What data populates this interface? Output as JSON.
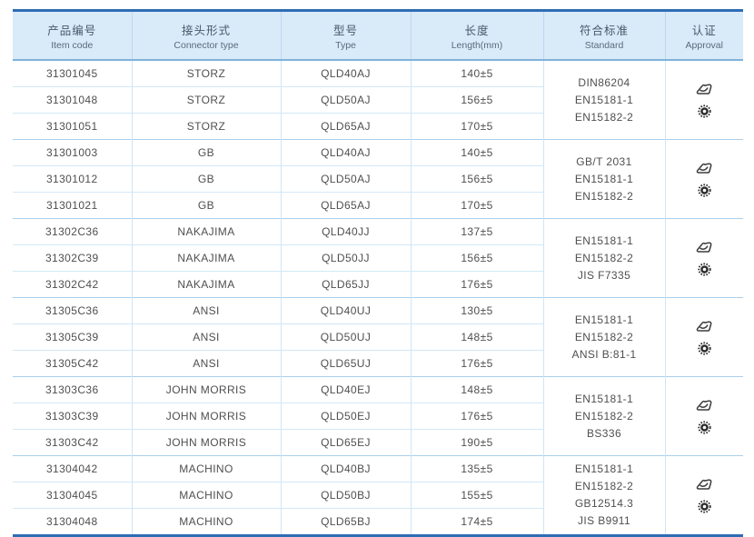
{
  "colors": {
    "border_accent": "#2e6db4",
    "header_bg": "#d9eaf8",
    "row_separator": "#cfe6f5",
    "group_separator": "#aacfeb",
    "text": "#4f4f4f"
  },
  "table": {
    "columns": [
      {
        "zh": "产品编号",
        "en": "Item code"
      },
      {
        "zh": "接头形式",
        "en": "Connector type"
      },
      {
        "zh": "型号",
        "en": "Type"
      },
      {
        "zh": "长度",
        "en": "Length(mm)"
      },
      {
        "zh": "符合标准",
        "en": "Standard"
      },
      {
        "zh": "认证",
        "en": "Approval"
      }
    ],
    "groups": [
      {
        "connector_type": "STORZ",
        "rows": [
          {
            "item_code": "31301045",
            "type": "QLD40AJ",
            "length": "140±5"
          },
          {
            "item_code": "31301048",
            "type": "QLD50AJ",
            "length": "156±5"
          },
          {
            "item_code": "31301051",
            "type": "QLD65AJ",
            "length": "170±5"
          }
        ],
        "standards": [
          "DIN86204",
          "EN15181-1",
          "EN15182-2"
        ],
        "approval_icons": [
          "certification-stamp-icon",
          "gear-seal-icon"
        ]
      },
      {
        "connector_type": "GB",
        "rows": [
          {
            "item_code": "31301003",
            "type": "QLD40AJ",
            "length": "140±5"
          },
          {
            "item_code": "31301012",
            "type": "QLD50AJ",
            "length": "156±5"
          },
          {
            "item_code": "31301021",
            "type": "QLD65AJ",
            "length": "170±5"
          }
        ],
        "standards": [
          "GB/T 2031",
          "EN15181-1",
          "EN15182-2"
        ],
        "approval_icons": [
          "certification-stamp-icon",
          "gear-seal-icon"
        ]
      },
      {
        "connector_type": "NAKAJIMA",
        "rows": [
          {
            "item_code": "31302C36",
            "type": "QLD40JJ",
            "length": "137±5"
          },
          {
            "item_code": "31302C39",
            "type": "QLD50JJ",
            "length": "156±5"
          },
          {
            "item_code": "31302C42",
            "type": "QLD65JJ",
            "length": "176±5"
          }
        ],
        "standards": [
          "EN15181-1",
          "EN15182-2",
          "JIS F7335"
        ],
        "approval_icons": [
          "certification-stamp-icon",
          "gear-seal-icon"
        ]
      },
      {
        "connector_type": "ANSI",
        "rows": [
          {
            "item_code": "31305C36",
            "type": "QLD40UJ",
            "length": "130±5"
          },
          {
            "item_code": "31305C39",
            "type": "QLD50UJ",
            "length": "148±5"
          },
          {
            "item_code": "31305C42",
            "type": "QLD65UJ",
            "length": "176±5"
          }
        ],
        "standards": [
          "EN15181-1",
          "EN15182-2",
          "ANSI B:81-1"
        ],
        "approval_icons": [
          "certification-stamp-icon",
          "gear-seal-icon"
        ]
      },
      {
        "connector_type": "JOHN MORRIS",
        "rows": [
          {
            "item_code": "31303C36",
            "type": "QLD40EJ",
            "length": "148±5"
          },
          {
            "item_code": "31303C39",
            "type": "QLD50EJ",
            "length": "176±5"
          },
          {
            "item_code": "31303C42",
            "type": "QLD65EJ",
            "length": "190±5"
          }
        ],
        "standards": [
          "EN15181-1",
          "EN15182-2",
          "BS336"
        ],
        "approval_icons": [
          "certification-stamp-icon",
          "gear-seal-icon"
        ]
      },
      {
        "connector_type": "MACHINO",
        "rows": [
          {
            "item_code": "31304042",
            "type": "QLD40BJ",
            "length": "135±5"
          },
          {
            "item_code": "31304045",
            "type": "QLD50BJ",
            "length": "155±5"
          },
          {
            "item_code": "31304048",
            "type": "QLD65BJ",
            "length": "174±5"
          }
        ],
        "standards": [
          "EN15181-1",
          "EN15182-2",
          "GB12514.3",
          "JIS B9911"
        ],
        "approval_icons": [
          "certification-stamp-icon",
          "gear-seal-icon"
        ]
      }
    ]
  }
}
